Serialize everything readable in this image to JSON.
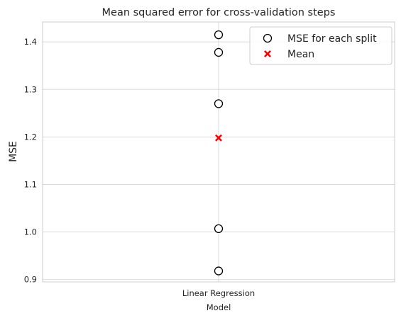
{
  "chart_data": {
    "type": "scatter",
    "title": "Mean squared error for cross-validation steps",
    "xlabel": "Model",
    "ylabel": "MSE",
    "categories": [
      "Linear Regression"
    ],
    "ylim": [
      0.895,
      1.442
    ],
    "yticks": [
      "0.9",
      "1.0",
      "1.1",
      "1.2",
      "1.3",
      "1.4"
    ],
    "grid": true,
    "legend_position": "top-right",
    "series": [
      {
        "name": "MSE for each split",
        "marker": "open-circle",
        "color": "#000000",
        "values": [
          1.415,
          1.378,
          1.27,
          1.007,
          0.918
        ]
      },
      {
        "name": "Mean",
        "marker": "x",
        "color": "#ff0000",
        "values": [
          1.198
        ]
      }
    ]
  }
}
